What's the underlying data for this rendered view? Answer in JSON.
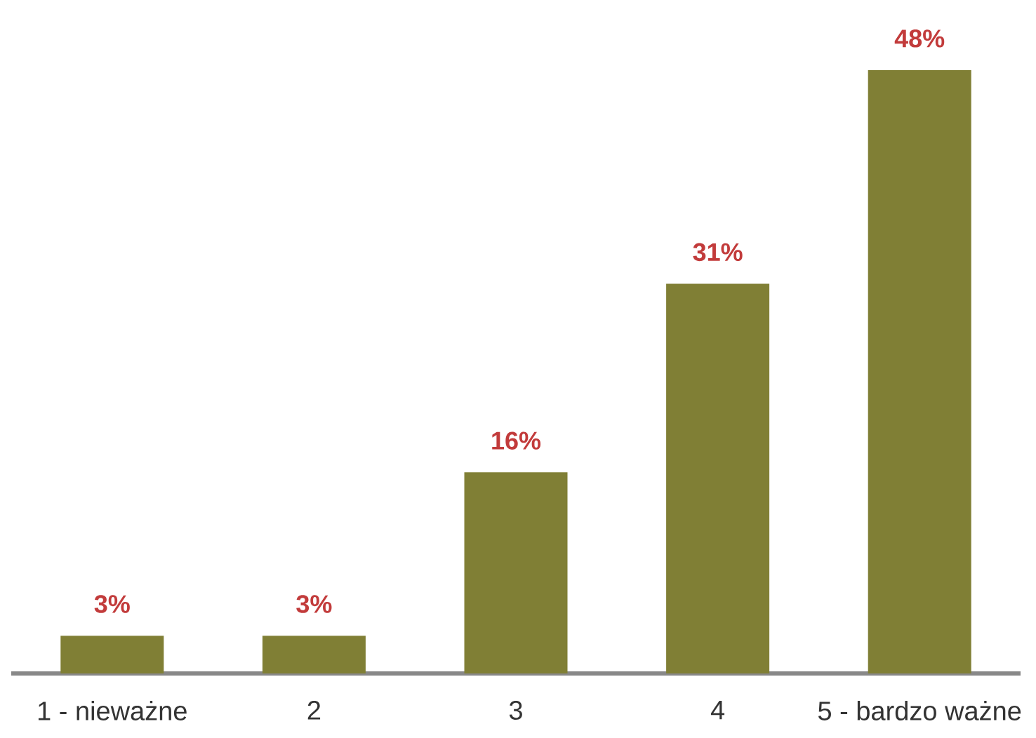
{
  "chart_data": {
    "type": "bar",
    "categories": [
      "1 - nieważne",
      "2",
      "3",
      "4",
      "5 - bardzo ważne"
    ],
    "values": [
      3,
      3,
      16,
      31,
      48
    ],
    "value_labels": [
      "3%",
      "3%",
      "16%",
      "31%",
      "48%"
    ],
    "color": "#807f35"
  }
}
